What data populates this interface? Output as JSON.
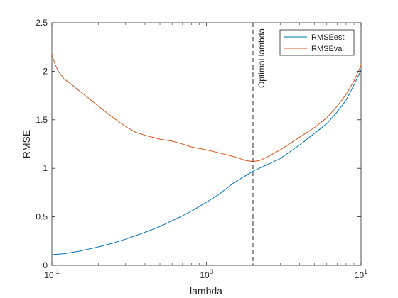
{
  "chart_data": {
    "type": "line",
    "xlabel": "lambda",
    "ylabel": "RMSE",
    "x_scale": "log",
    "xlim": [
      0.1,
      10
    ],
    "ylim": [
      0,
      2.5
    ],
    "x_ticks": [
      {
        "value": 0.1,
        "base": "10",
        "exp": "-1"
      },
      {
        "value": 1,
        "base": "10",
        "exp": "0"
      },
      {
        "value": 10,
        "base": "10",
        "exp": "1"
      }
    ],
    "y_ticks": [
      {
        "value": 0,
        "label": "0"
      },
      {
        "value": 0.5,
        "label": "0.5"
      },
      {
        "value": 1,
        "label": "1"
      },
      {
        "value": 1.5,
        "label": "1.5"
      },
      {
        "value": 2,
        "label": "2"
      },
      {
        "value": 2.5,
        "label": "2.5"
      }
    ],
    "grid": false,
    "legend_position": "top-right",
    "series": [
      {
        "name": "RMSEest",
        "color": "#0072bd",
        "points": [
          [
            0.1,
            0.11
          ],
          [
            0.12,
            0.12
          ],
          [
            0.15,
            0.145
          ],
          [
            0.2,
            0.19
          ],
          [
            0.25,
            0.23
          ],
          [
            0.3,
            0.27
          ],
          [
            0.4,
            0.34
          ],
          [
            0.5,
            0.4
          ],
          [
            0.6,
            0.46
          ],
          [
            0.7,
            0.51
          ],
          [
            0.8,
            0.56
          ],
          [
            1.0,
            0.65
          ],
          [
            1.2,
            0.73
          ],
          [
            1.5,
            0.85
          ],
          [
            2.0,
            0.97
          ],
          [
            2.5,
            1.04
          ],
          [
            3.0,
            1.1
          ],
          [
            4.0,
            1.24
          ],
          [
            5.0,
            1.36
          ],
          [
            6.0,
            1.46
          ],
          [
            7.0,
            1.58
          ],
          [
            8.0,
            1.7
          ],
          [
            9.0,
            1.86
          ],
          [
            10.0,
            2.01
          ]
        ]
      },
      {
        "name": "RMSEval",
        "color": "#d95319",
        "points": [
          [
            0.1,
            2.17
          ],
          [
            0.105,
            2.07
          ],
          [
            0.11,
            2.0
          ],
          [
            0.12,
            1.92
          ],
          [
            0.13,
            1.88
          ],
          [
            0.15,
            1.8
          ],
          [
            0.2,
            1.64
          ],
          [
            0.25,
            1.52
          ],
          [
            0.3,
            1.43
          ],
          [
            0.35,
            1.37
          ],
          [
            0.4,
            1.34
          ],
          [
            0.5,
            1.3
          ],
          [
            0.6,
            1.28
          ],
          [
            0.7,
            1.25
          ],
          [
            0.8,
            1.22
          ],
          [
            1.0,
            1.19
          ],
          [
            1.2,
            1.16
          ],
          [
            1.5,
            1.12
          ],
          [
            1.8,
            1.08
          ],
          [
            2.0,
            1.07
          ],
          [
            2.2,
            1.08
          ],
          [
            2.5,
            1.12
          ],
          [
            3.0,
            1.19
          ],
          [
            4.0,
            1.32
          ],
          [
            5.0,
            1.42
          ],
          [
            6.0,
            1.52
          ],
          [
            7.0,
            1.64
          ],
          [
            8.0,
            1.76
          ],
          [
            9.0,
            1.9
          ],
          [
            10.0,
            2.06
          ]
        ]
      }
    ],
    "annotation": {
      "label": "Optimal lambda",
      "x": 2.0,
      "style": "dashed vertical line"
    }
  }
}
